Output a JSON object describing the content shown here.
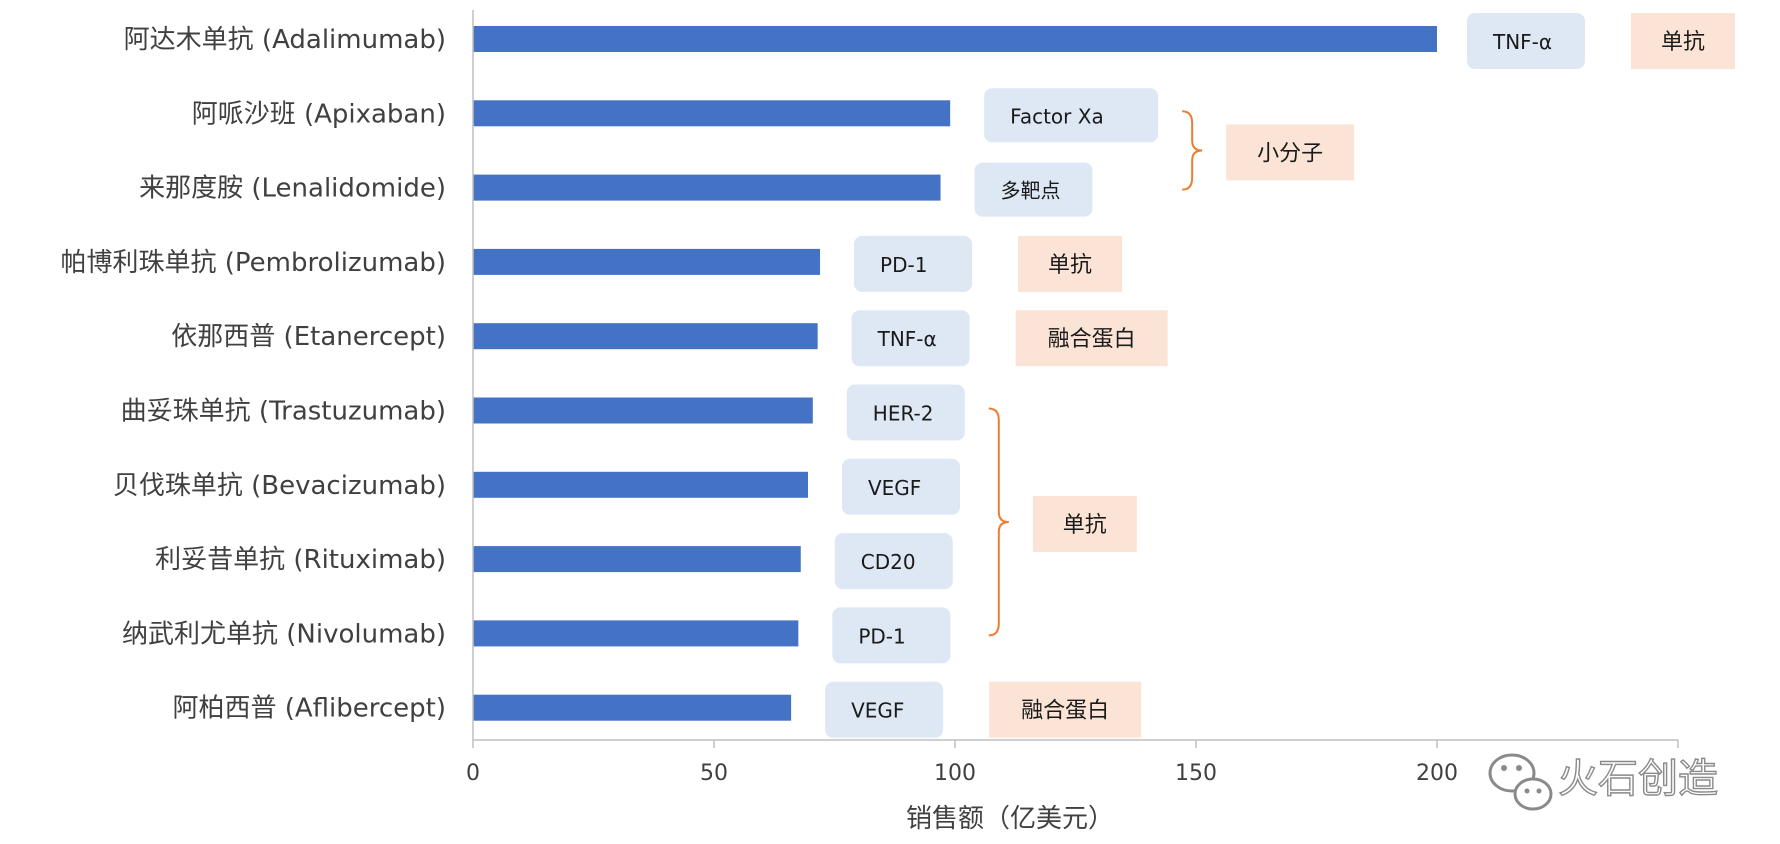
{
  "chart_data": {
    "type": "bar",
    "orientation": "horizontal",
    "categories": [
      "阿达木单抗 (Adalimumab)",
      "阿哌沙班 (Apixaban)",
      "来那度胺 (Lenalidomide)",
      "帕博利珠单抗 (Pembrolizumab)",
      "依那西普 (Etanercept)",
      "曲妥珠单抗 (Trastuzumab)",
      "贝伐珠单抗 (Bevacizumab)",
      "利妥昔单抗 (Rituximab)",
      "纳武利尤单抗 (Nivolumab)",
      "阿柏西普 (Aflibercept)"
    ],
    "values": [
      200,
      99,
      97,
      72,
      71.5,
      70.5,
      69.5,
      68,
      67.5,
      66
    ],
    "xlabel": "销售额（亿美元）",
    "xlim": [
      0,
      250
    ],
    "xticks": [
      0,
      50,
      100,
      150,
      200
    ],
    "bar_color": "#4472c4",
    "grid": false,
    "targets": [
      "TNF-α",
      "Factor Xa",
      "多靶点",
      "PD-1",
      "TNF-α",
      "HER-2",
      "VEGF",
      "CD20",
      "PD-1",
      "VEGF"
    ],
    "type_groups": [
      {
        "label": "单抗",
        "rows": [
          0
        ]
      },
      {
        "label": "小分子",
        "rows": [
          1,
          2
        ],
        "bracket": true
      },
      {
        "label": "单抗",
        "rows": [
          3
        ]
      },
      {
        "label": "融合蛋白",
        "rows": [
          4
        ]
      },
      {
        "label": "单抗",
        "rows": [
          5,
          6,
          7,
          8
        ],
        "bracket": true
      },
      {
        "label": "融合蛋白",
        "rows": [
          9
        ]
      }
    ],
    "target_box_color": "#dde8f4",
    "type_box_color": "#fbe4d5",
    "bracket_color": "#ed7d31"
  },
  "watermark": {
    "text": "火石创造",
    "icon": "wechat-icon"
  }
}
